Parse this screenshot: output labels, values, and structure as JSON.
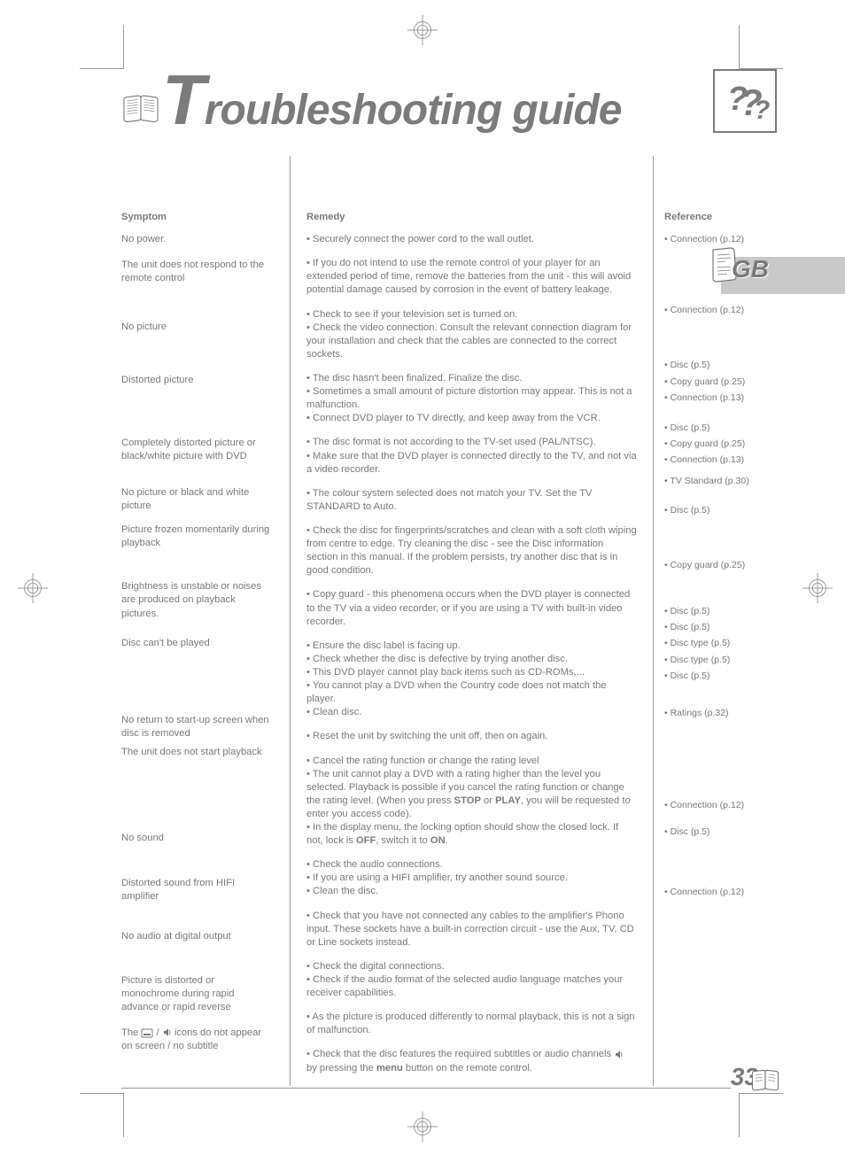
{
  "page": {
    "title_cap": "T",
    "title_rest": "roubleshooting guide",
    "country_code": "GB",
    "page_number": "33",
    "menu_label": "menu"
  },
  "icons": {
    "book": "book-icon",
    "question": "question-icon",
    "note": "note-icon",
    "subtitle": "subtitle-icon",
    "audio": "audio-icon"
  },
  "headers": {
    "symptom": "Symptom",
    "remedy": "Remedy",
    "reference": "Reference"
  },
  "rows": [
    {
      "symptom": "No power.",
      "remedy": "• Securely connect the power cord to the wall outlet.",
      "reference": "• Connection (p.12)"
    },
    {
      "symptom": "The unit does not respond to the remote control",
      "remedy": "• If you do not intend to use the remote control of your player for an extended period of time, remove the batteries from the unit - this will avoid potential damage caused by corrosion in the event of battery leakage.",
      "reference": ""
    },
    {
      "symptom": "No picture",
      "remedy_parts": [
        "• Check to see if your television set is turned on.",
        "• Check the video connection. Consult the relevant connection diagram for your installation and check that the cables are connected to the correct sockets."
      ],
      "reference": "• Connection (p.12)"
    },
    {
      "symptom": "Distorted picture",
      "remedy_parts": [
        "• The disc hasn't been finalized. Finalize the disc.",
        "• Sometimes a small amount of picture distortion may appear. This is not a malfunction.",
        "• Connect DVD player to TV directly, and keep away from the VCR."
      ],
      "reference_parts": [
        "• Disc (p.5)",
        "• Copy guard (p.25)",
        "• Connection (p.13)"
      ]
    },
    {
      "symptom": "Completely distorted picture or black/white picture with DVD",
      "remedy_parts": [
        "• The disc format is not according to the TV-set used (PAL/NTSC).",
        "• Make sure that the DVD player is connected directly to the TV, and not via a video recorder."
      ],
      "reference_parts": [
        "• Disc (p.5)",
        "• Copy guard (p.25)",
        "• Connection (p.13)"
      ]
    },
    {
      "symptom": "No picture or black and white picture",
      "remedy": "• The colour system selected does not match your TV. Set the TV STANDARD to Auto.",
      "reference": "• TV Standard (p.30)"
    },
    {
      "symptom": "Picture frozen momentarily during playback",
      "remedy": "• Check the disc for fingerprints/scratches and clean with a soft cloth wiping from centre to edge. Try cleaning the disc - see the Disc information section in this manual. If the problem persists, try another disc that is in good condition.",
      "reference": "• Disc (p.5)"
    },
    {
      "symptom": "Brightness is unstable or noises are produced on playback pictures.",
      "remedy": "• Copy guard - this phenomena occurs when the DVD player is connected to the TV via a video recorder, or if you are using a TV with built-in video recorder.",
      "reference": "• Copy guard (p.25)"
    },
    {
      "symptom": "Disc can't be played",
      "remedy_parts": [
        "• Ensure the disc label is facing up.",
        "• Check whether the disc is defective by trying another disc.",
        "• This DVD player cannot play back items such as CD-ROMs,...",
        "• You cannot play a DVD when the Country code does not match the player.",
        "• Clean disc."
      ],
      "reference_parts": [
        "• Disc (p.5)",
        "• Disc (p.5)",
        "• Disc type (p.5)",
        "• Disc type (p.5)",
        "• Disc (p.5)"
      ]
    },
    {
      "symptom": "No return to start-up screen when disc is removed",
      "remedy": "• Reset the unit by switching the unit off, then on again.",
      "reference": ""
    },
    {
      "symptom": "The unit does not start playback",
      "remedy_parts_html": [
        "• Cancel the rating function or change the rating level",
        "• The unit cannot play a DVD with a rating higher than the level you selected. Playback is possible if you cancel the rating function or change the rating level. (When you press <span class='kw'>STOP</span> or <span class='kw'>PLAY</span>, you will be requested to enter you access code).",
        "• In the display menu, the locking option should show the closed lock. If not, lock is <span class='kw'>OFF</span>, switch it to <span class='kw'>ON</span>."
      ],
      "reference": "• Ratings (p.32)"
    },
    {
      "symptom": "No sound",
      "remedy_parts": [
        "• Check the audio connections.",
        "• If you are using a HIFI amplifier, try another sound source.",
        "• Clean the disc."
      ],
      "reference_parts": [
        "• Connection (p.12)",
        "",
        "• Disc (p.5)"
      ]
    },
    {
      "symptom": "Distorted sound from HIFI amplifier",
      "remedy": "• Check that you have not connected any cables to the amplifier's Phono input. These sockets have a built-in correction circuit - use the Aux, TV, CD or Line sockets instead.",
      "reference": ""
    },
    {
      "symptom": "No audio at digital output",
      "remedy_parts": [
        "• Check the digital connections.",
        "• Check if the audio format of the selected audio language matches your receiver capabilities."
      ],
      "reference": "• Connection (p.12)"
    },
    {
      "symptom": "Picture is distorted or monochrome during rapid advance or rapid reverse",
      "remedy": "• As the picture is produced differently to normal playback, this is not a sign of malfunction.",
      "reference": ""
    },
    {
      "symptom_icons": true,
      "symptom_pre": "The ",
      "symptom_post": " icons do not appear on screen / no subtitle",
      "remedy_html": "• Check that the disc features the required subtitles or audio channels  by pressing the <span class='kw'>menu</span> button on the remote control.",
      "reference": ""
    }
  ],
  "colors": {
    "text": "#7a7a7a",
    "heading": "#7b7b7b",
    "rule": "#999999",
    "tab_bg": "#c9c9c9",
    "background": "#ffffff"
  },
  "typography": {
    "body_fontsize_pt": 8,
    "title_fontsize_pt": 36,
    "title_cap_fontsize_pt": 60,
    "gb_fontsize_pt": 21,
    "page_num_fontsize_pt": 21
  }
}
